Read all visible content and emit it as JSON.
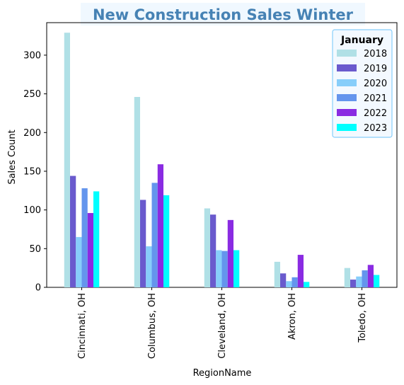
{
  "chart_data": {
    "type": "bar",
    "title": "New Construction Sales Winter",
    "xlabel": "RegionName",
    "ylabel": "Sales Count",
    "ylim": [
      0,
      342
    ],
    "yticks": [
      "0",
      "50",
      "100",
      "150",
      "200",
      "250",
      "300"
    ],
    "ytick_values": [
      0,
      50,
      100,
      150,
      200,
      250,
      300
    ],
    "categories": [
      "Cincinnati, OH",
      "Columbus, OH",
      "Cleveland, OH",
      "Akron, OH",
      "Toledo, OH"
    ],
    "legend": {
      "title": "January",
      "placement": "top-right"
    },
    "series": [
      {
        "name": "2018",
        "color": "#B0E0E6",
        "values": [
          329,
          246,
          102,
          33,
          25
        ]
      },
      {
        "name": "2019",
        "color": "#6A5ACD",
        "values": [
          144,
          113,
          94,
          18,
          10
        ]
      },
      {
        "name": "2020",
        "color": "#87CEFA",
        "values": [
          65,
          53,
          48,
          8,
          14
        ]
      },
      {
        "name": "2021",
        "color": "#6495ED",
        "values": [
          128,
          135,
          47,
          13,
          22
        ]
      },
      {
        "name": "2022",
        "color": "#8A2BE2",
        "values": [
          96,
          159,
          87,
          42,
          29
        ]
      },
      {
        "name": "2023",
        "color": "#00FFFF",
        "values": [
          124,
          119,
          48,
          7,
          16
        ]
      }
    ],
    "grid": false
  }
}
